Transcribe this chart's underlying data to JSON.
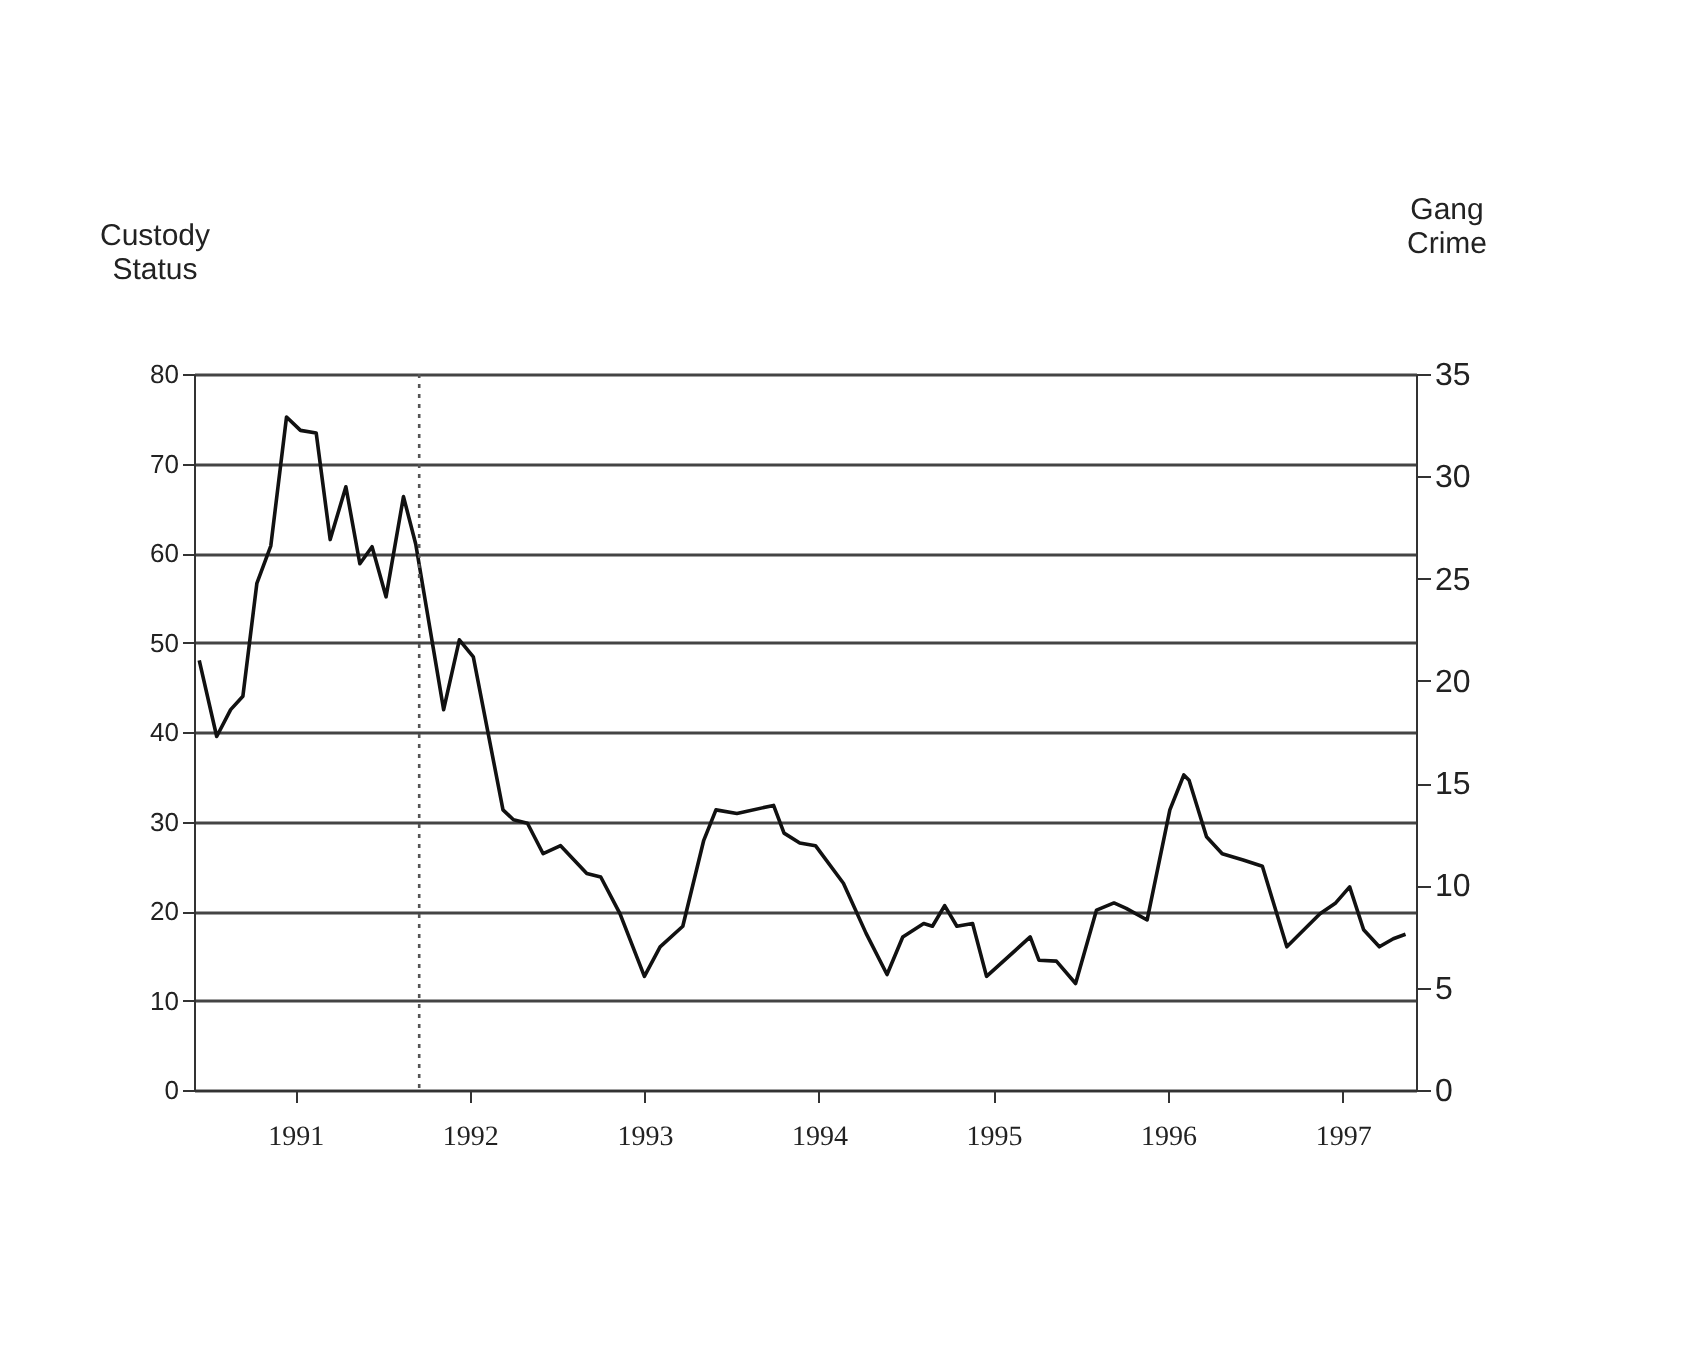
{
  "chart_data": {
    "type": "line",
    "xlabel": null,
    "ylabel": "Custody Status",
    "y2label": "Gang Crime",
    "x": [
      1990.45,
      1990.55,
      1990.63,
      1990.7,
      1990.78,
      1990.86,
      1990.95,
      1991.03,
      1991.12,
      1991.2,
      1991.29,
      1991.37,
      1991.44,
      1991.52,
      1991.62,
      1991.69,
      1991.85,
      1991.94,
      1992.02,
      1992.19,
      1992.25,
      1992.33,
      1992.42,
      1992.52,
      1992.67,
      1992.75,
      1992.86,
      1993.0,
      1993.09,
      1993.22,
      1993.34,
      1993.41,
      1993.53,
      1993.74,
      1993.8,
      1993.89,
      1993.98,
      1994.14,
      1994.27,
      1994.39,
      1994.48,
      1994.6,
      1994.65,
      1994.72,
      1994.79,
      1994.88,
      1994.96,
      1995.21,
      1995.26,
      1995.36,
      1995.47,
      1995.59,
      1995.69,
      1995.76,
      1995.88,
      1996.01,
      1996.09,
      1996.12,
      1996.22,
      1996.31,
      1996.43,
      1996.54,
      1996.68,
      1996.87,
      1996.96,
      1997.04,
      1997.12,
      1997.21,
      1997.29,
      1997.36
    ],
    "series": [
      {
        "color": "#111111",
        "values": [
          48.0,
          39.5,
          42.5,
          44,
          56.6,
          60.8,
          75.2,
          73.7,
          73.4,
          61.5,
          67.4,
          58.8,
          60.7,
          55.1,
          66.3,
          61,
          42.5,
          50.3,
          48.4,
          31.3,
          30.2,
          29.8,
          26.4,
          27.3,
          24.2,
          23.8,
          19.7,
          12.7,
          16,
          18.3,
          27.9,
          31.3,
          30.9,
          31.8,
          28.7,
          27.6,
          27.3,
          23.1,
          17.5,
          12.9,
          17.1,
          18.6,
          18.3,
          20.6,
          18.3,
          18.6,
          12.7,
          17.1,
          14.5,
          14.4,
          11.9,
          20.1,
          20.9,
          20.3,
          19,
          31.3,
          35.2,
          34.6,
          28.3,
          26.4,
          25.7,
          25,
          16,
          19.7,
          20.9,
          22.7,
          17.9,
          16,
          16.9,
          17.4
        ]
      }
    ],
    "xlim": [
      1990.42,
      1997.42
    ],
    "xticks": [
      1991,
      1992,
      1993,
      1994,
      1995,
      1996,
      1997
    ],
    "ylim": [
      0,
      80
    ],
    "yticks": [
      0,
      10,
      20,
      30,
      40,
      50,
      60,
      70,
      80
    ],
    "y2lim": [
      0,
      35
    ],
    "y2ticks": [
      0,
      5,
      10,
      15,
      20,
      25,
      30,
      35
    ],
    "ref_lines": [
      {
        "axis": "x",
        "value": 1991.71,
        "line_style": "dotted",
        "color": "#555555"
      }
    ],
    "grid": "y",
    "marker": "none",
    "line_style": "solid"
  }
}
